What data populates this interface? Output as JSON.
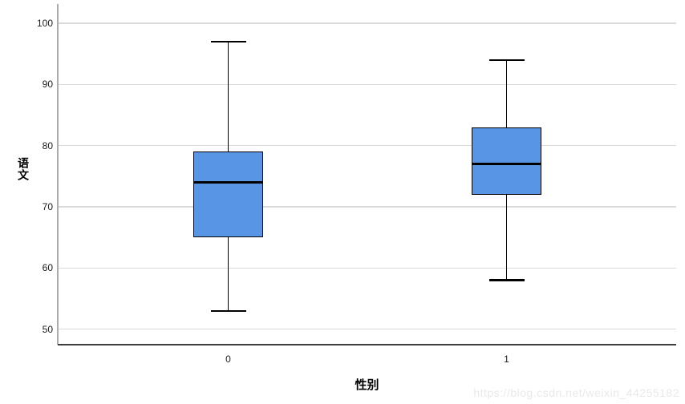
{
  "watermark": "https://blog.csdn.net/weixin_44255182",
  "chart_data": {
    "type": "boxplot",
    "title": "",
    "xlabel": "性别",
    "ylabel": "语文",
    "categories": [
      "0",
      "1"
    ],
    "series": [
      {
        "category": "0",
        "min": 53,
        "q1": 65,
        "median": 74,
        "q3": 79,
        "max": 97,
        "outliers": []
      },
      {
        "category": "1",
        "min": 58,
        "q1": 72,
        "median": 77,
        "q3": 83,
        "max": 94,
        "outliers": []
      }
    ],
    "ylim": [
      47.5,
      103
    ],
    "yticks": [
      50,
      60,
      70,
      80,
      90,
      100
    ],
    "grid": "horizontal-only",
    "legend": "none",
    "colors": {
      "box_fill": "#5895E5",
      "box_border": "#000000",
      "median": "#000000",
      "whisker": "#000000",
      "gridline": "#DADADA",
      "y_axis_line": "#ACACAC",
      "x_axis_line": "#3E3E3E",
      "tick_text": "#1A1A1A",
      "watermark_text": "#E9E9E9"
    }
  }
}
